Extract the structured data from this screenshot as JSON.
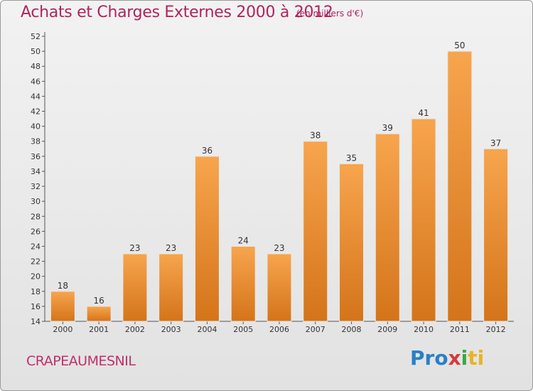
{
  "header": {
    "title": "Achats et Charges Externes 2000 à 2012",
    "unit_note": "(en milliers d'€)"
  },
  "footer": {
    "commune": "CRAPEAUMESNIL",
    "logo": [
      "Pro",
      "x",
      "i",
      "ti"
    ]
  },
  "colors": {
    "bar_top": "#f7a54e",
    "bar_bottom": "#d4741a",
    "title": "#b0235e"
  },
  "chart_data": {
    "type": "bar",
    "title": "Achats et Charges Externes 2000 à 2012",
    "subtitle": "(en milliers d'€)",
    "categories": [
      "2000",
      "2001",
      "2002",
      "2003",
      "2004",
      "2005",
      "2006",
      "2007",
      "2008",
      "2009",
      "2010",
      "2011",
      "2012"
    ],
    "values": [
      18,
      16,
      23,
      23,
      36,
      24,
      23,
      38,
      35,
      39,
      41,
      50,
      37
    ],
    "ylim": [
      14,
      52
    ],
    "yticks": [
      14,
      16,
      18,
      20,
      22,
      24,
      26,
      28,
      30,
      32,
      34,
      36,
      38,
      40,
      42,
      44,
      46,
      48,
      50,
      52
    ],
    "grid": false,
    "data_labels": true
  }
}
